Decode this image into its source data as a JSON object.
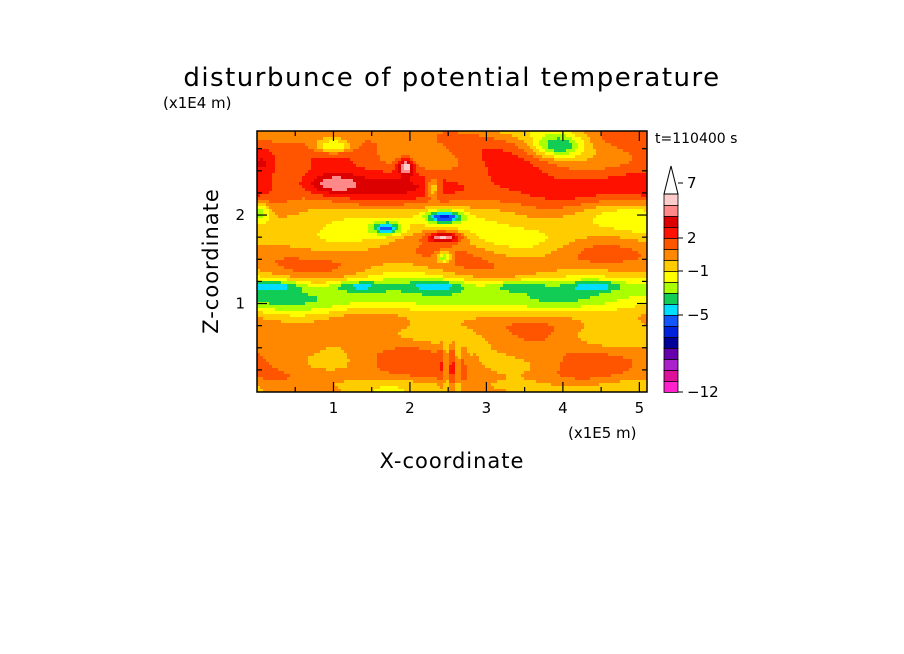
{
  "chart_data": {
    "type": "heatmap",
    "title": "disturbunce of potential temperature",
    "time_label": "t=110400 s",
    "xlabel": "X-coordinate",
    "ylabel": "Z-coordinate",
    "x_unit_label": "(x1E5 m)",
    "y_unit_label": "(x1E4 m)",
    "xlim": [
      0,
      5.1
    ],
    "ylim": [
      0,
      2.95
    ],
    "x_ticks": [
      1,
      2,
      3,
      4,
      5
    ],
    "y_ticks": [
      1,
      2
    ],
    "x_tick_labels": [
      "1",
      "2",
      "3",
      "4",
      "5"
    ],
    "y_tick_labels": [
      "1",
      "2"
    ],
    "colorbar": {
      "tick_labels": [
        "7",
        "2",
        "−1",
        "−5",
        "−12"
      ],
      "tick_levels": [
        7,
        2,
        -1,
        -5,
        -12
      ],
      "extend": "max",
      "colors": [
        "#ff22cc",
        "#dd1199",
        "#aa22cc",
        "#6600aa",
        "#000099",
        "#0022dd",
        "#1155ff",
        "#00ddff",
        "#11cc55",
        "#aaff00",
        "#ffff00",
        "#ffcc00",
        "#ff8800",
        "#ff5500",
        "#ff1100",
        "#dd0000",
        "#ff8888",
        "#ffcccc"
      ]
    },
    "field_features": [
      {
        "desc": "warm band",
        "x": [
          0.0,
          5.1
        ],
        "z": 2.4,
        "value": 3
      },
      {
        "desc": "cool band",
        "x": [
          0.0,
          5.1
        ],
        "z": 1.05,
        "value": -2
      },
      {
        "desc": "warm band",
        "x": [
          0.0,
          5.1
        ],
        "z": 0.45,
        "value": 1
      },
      {
        "desc": "cold core",
        "x": 3.95,
        "z": 2.78,
        "value": -5
      },
      {
        "desc": "cold core",
        "x": 2.45,
        "z": 2.0,
        "value": -6
      },
      {
        "desc": "warm core",
        "x": 2.45,
        "z": 1.75,
        "value": 5
      },
      {
        "desc": "warm core",
        "x": 1.95,
        "z": 2.55,
        "value": 5
      },
      {
        "desc": "cold core",
        "x": 1.7,
        "z": 1.85,
        "value": -5
      },
      {
        "desc": "cold core",
        "x": 2.45,
        "z": 1.52,
        "value": -4
      },
      {
        "desc": "warm core",
        "x": 1.0,
        "z": 2.35,
        "value": 3
      }
    ]
  }
}
